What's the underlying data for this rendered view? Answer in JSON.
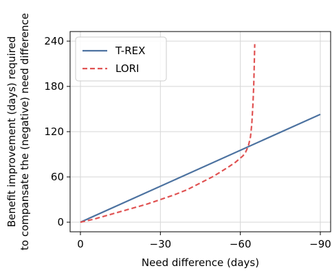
{
  "chart_data": {
    "type": "line",
    "xlabel": "Need difference (days)",
    "ylabel_lines": [
      "Benefit improvement (days) required",
      "to compansate the (negative) need difference"
    ],
    "xlim": [
      0,
      -90
    ],
    "ylim": [
      0,
      240
    ],
    "x_axis_reversed": true,
    "xticks": [
      0,
      -30,
      -60,
      -90
    ],
    "xtick_labels": [
      "0",
      "−30",
      "−60",
      "−90"
    ],
    "yticks": [
      0,
      60,
      120,
      180,
      240
    ],
    "ytick_labels": [
      "0",
      "60",
      "120",
      "180",
      "240"
    ],
    "grid": true,
    "legend_placement": "top-left",
    "series": [
      {
        "name": "T-REX",
        "style": "solid",
        "color": "#4c72a0",
        "points": [
          [
            0,
            0
          ],
          [
            -90,
            143
          ]
        ]
      },
      {
        "name": "LORI",
        "style": "dashed",
        "color": "#e05252",
        "points": [
          [
            0,
            0
          ],
          [
            -5,
            4
          ],
          [
            -10,
            9
          ],
          [
            -15,
            14
          ],
          [
            -20,
            19
          ],
          [
            -25,
            24
          ],
          [
            -30,
            30
          ],
          [
            -35,
            36
          ],
          [
            -40,
            43
          ],
          [
            -45,
            52
          ],
          [
            -50,
            61
          ],
          [
            -55,
            72
          ],
          [
            -58,
            79
          ],
          [
            -60,
            85
          ],
          [
            -61,
            88
          ],
          [
            -62,
            93
          ],
          [
            -63,
            101
          ],
          [
            -63.8,
            113
          ],
          [
            -64.3,
            130
          ],
          [
            -64.7,
            155
          ],
          [
            -65,
            180
          ],
          [
            -65.2,
            205
          ],
          [
            -65.4,
            236
          ]
        ]
      }
    ]
  }
}
